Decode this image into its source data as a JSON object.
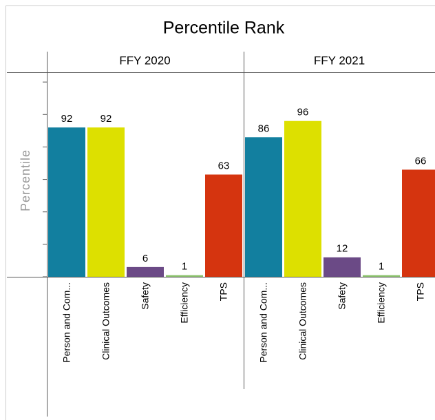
{
  "chart_data": {
    "type": "bar",
    "title": "Percentile Rank",
    "y_label": "Percentile",
    "categories": [
      "Person and Com...",
      "Clinical Outcomes",
      "Safety",
      "Efficiency",
      "TPS"
    ],
    "colors": [
      "#127f9f",
      "#dde000",
      "#6b4a86",
      "#8cc36d",
      "#d5340f"
    ],
    "ylim": [
      0,
      126
    ],
    "yticks": [
      0,
      20,
      40,
      60,
      80,
      100,
      120
    ],
    "facets": [
      {
        "name": "FFY 2020",
        "values": [
          92,
          92,
          6,
          1,
          63
        ]
      },
      {
        "name": "FFY 2021",
        "values": [
          86,
          96,
          12,
          1,
          66
        ]
      }
    ]
  }
}
